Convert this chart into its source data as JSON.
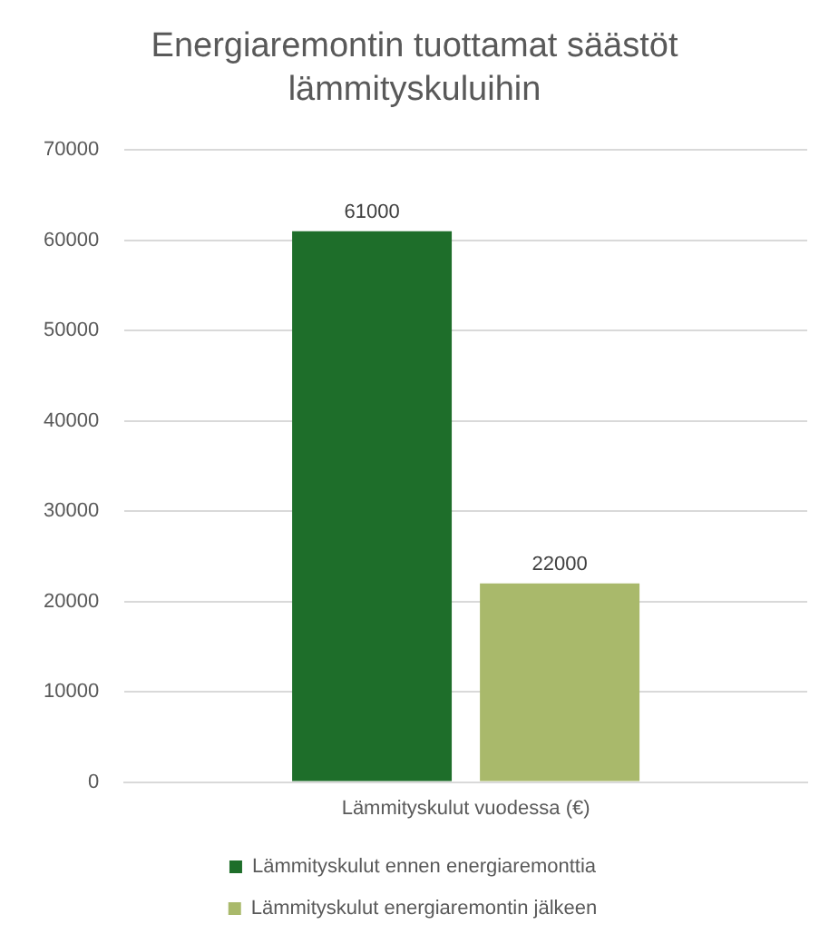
{
  "chart_data": {
    "type": "bar",
    "title": "Energiaremontin tuottamat säästöt lämmityskuluihin",
    "categories": [
      "Lämmityskulut vuodessa (€)"
    ],
    "series": [
      {
        "name": "Lämmityskulut ennen energiaremonttia",
        "color": "#1e6e2a",
        "values": [
          61000
        ]
      },
      {
        "name": "Lämmityskulut energiaremontin jälkeen",
        "color": "#a9b96b",
        "values": [
          22000
        ]
      }
    ],
    "ylim": [
      0,
      70000
    ],
    "yticks": [
      0,
      10000,
      20000,
      30000,
      40000,
      50000,
      60000,
      70000
    ],
    "grid": "y",
    "legend": "bottom",
    "data_labels": true
  }
}
